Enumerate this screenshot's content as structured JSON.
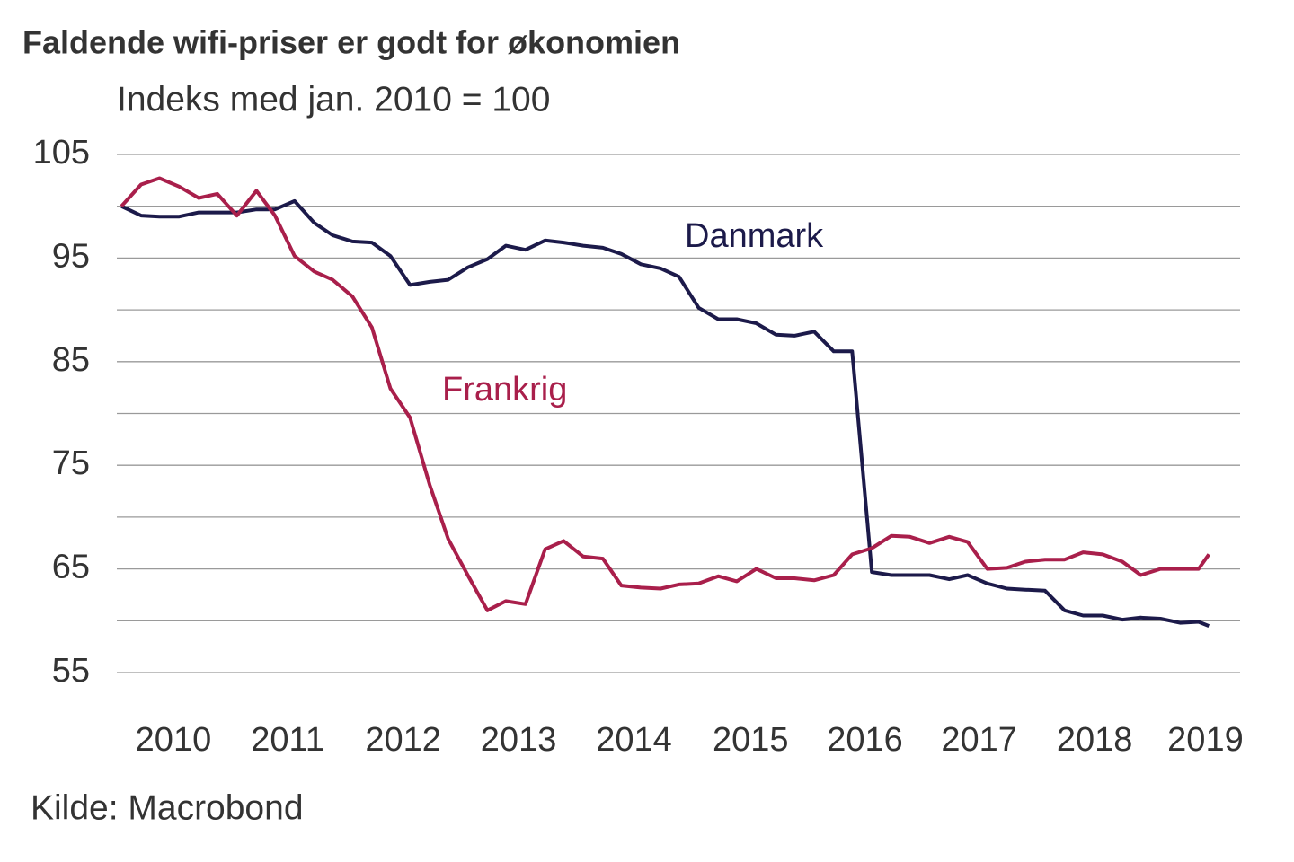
{
  "chart_data": {
    "type": "line",
    "title": "Faldende wifi-priser er godt for økonomien",
    "subtitle": "Indeks med jan. 2010 = 100",
    "source": "Kilde: Macrobond",
    "x": [
      2010,
      2010.17,
      2010.33,
      2010.5,
      2010.67,
      2010.83,
      2011,
      2011.17,
      2011.33,
      2011.5,
      2011.67,
      2011.83,
      2012,
      2012.17,
      2012.33,
      2012.5,
      2012.67,
      2012.83,
      2013,
      2013.17,
      2013.33,
      2013.5,
      2013.67,
      2013.83,
      2014,
      2014.17,
      2014.33,
      2014.5,
      2014.67,
      2014.83,
      2015,
      2015.17,
      2015.33,
      2015.5,
      2015.67,
      2015.83,
      2016,
      2016.17,
      2016.33,
      2016.5,
      2016.67,
      2016.83,
      2017,
      2017.17,
      2017.33,
      2017.5,
      2017.67,
      2017.83,
      2018,
      2018.17,
      2018.33,
      2018.5,
      2018.67,
      2018.83,
      2019,
      2019.17,
      2019.33,
      2019.42
    ],
    "series": [
      {
        "name": "Danmark",
        "color": "#1c1a4a",
        "values": [
          100,
          99.1,
          99,
          99,
          99.4,
          99.4,
          99.4,
          99.7,
          99.7,
          100.5,
          98.4,
          97.2,
          96.6,
          96.5,
          95.2,
          92.4,
          92.7,
          92.9,
          94.1,
          94.9,
          96.2,
          95.8,
          96.7,
          96.5,
          96.2,
          96,
          95.4,
          94.4,
          94,
          93.2,
          90.2,
          89.1,
          89.1,
          88.7,
          87.6,
          87.5,
          87.9,
          86,
          86,
          64.7,
          64.4,
          64.4,
          64.4,
          64,
          64.4,
          63.6,
          63.1,
          63,
          62.9,
          61,
          60.5,
          60.5,
          60.1,
          60.3,
          60.2,
          59.8,
          59.9,
          59.5
        ]
      },
      {
        "name": "Frankrig",
        "color": "#a91f4b",
        "values": [
          100,
          102.1,
          102.7,
          101.9,
          100.8,
          101.2,
          99.1,
          101.5,
          99.1,
          95.2,
          93.7,
          92.9,
          91.3,
          88.3,
          82.4,
          79.6,
          73.1,
          67.9,
          64.4,
          61,
          61.9,
          61.6,
          66.9,
          67.7,
          66.2,
          66,
          63.4,
          63.2,
          63.1,
          63.5,
          63.6,
          64.3,
          63.8,
          65,
          64.1,
          64.1,
          63.9,
          64.4,
          66.4,
          67,
          68.2,
          68.1,
          67.5,
          68.1,
          67.6,
          65,
          65.1,
          65.7,
          65.9,
          65.9,
          66.6,
          66.4,
          65.7,
          64.4,
          65,
          65,
          65,
          66.4
        ]
      }
    ],
    "xlim": [
      2009.96,
      2019.69
    ],
    "xticks": [
      {
        "value": 2010.45,
        "label": "2010"
      },
      {
        "value": 2011.44,
        "label": "2011"
      },
      {
        "value": 2012.44,
        "label": "2012"
      },
      {
        "value": 2013.44,
        "label": "2013"
      },
      {
        "value": 2014.44,
        "label": "2014"
      },
      {
        "value": 2015.45,
        "label": "2015"
      },
      {
        "value": 2016.44,
        "label": "2016"
      },
      {
        "value": 2017.43,
        "label": "2017"
      },
      {
        "value": 2018.43,
        "label": "2018"
      },
      {
        "value": 2019.39,
        "label": "2019"
      }
    ],
    "ylim": [
      55,
      105
    ],
    "yticks": [
      55,
      65,
      75,
      85,
      95,
      105
    ],
    "grid_lines": [
      55,
      60,
      65,
      70,
      75,
      80,
      85,
      90,
      95,
      100,
      105
    ]
  }
}
